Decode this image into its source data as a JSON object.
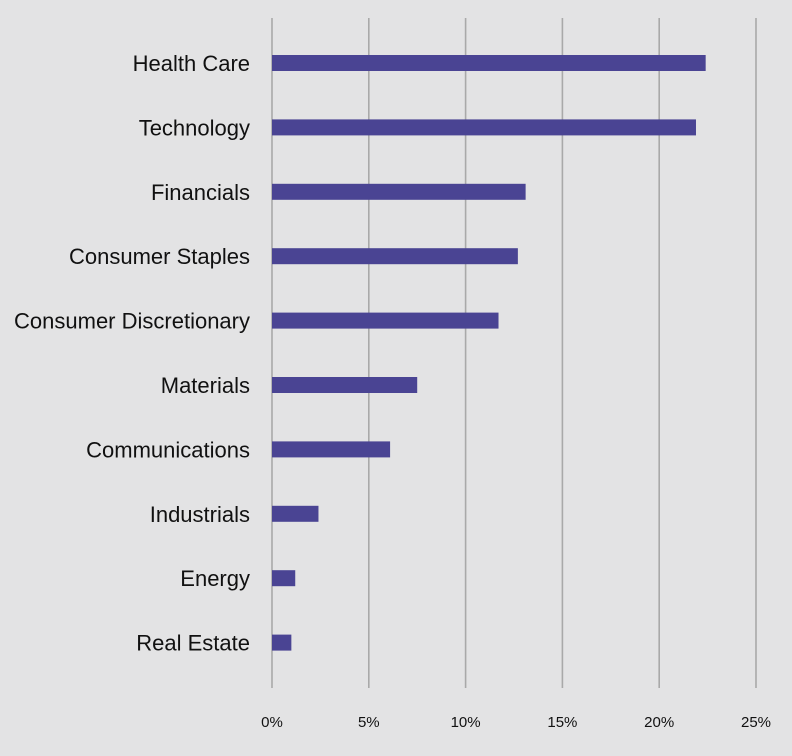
{
  "chart_data": {
    "type": "bar",
    "orientation": "horizontal",
    "categories": [
      "Health Care",
      "Technology",
      "Financials",
      "Consumer Staples",
      "Consumer Discretionary",
      "Materials",
      "Communications",
      "Industrials",
      "Energy",
      "Real Estate"
    ],
    "values": [
      22.4,
      21.9,
      13.1,
      12.7,
      11.7,
      7.5,
      6.1,
      2.4,
      1.2,
      1.0
    ],
    "x_ticks": [
      0,
      5,
      10,
      15,
      20,
      25
    ],
    "x_tick_labels": [
      "0%",
      "5%",
      "10%",
      "15%",
      "20%",
      "25%"
    ],
    "xlim": [
      0,
      25
    ],
    "title": "",
    "xlabel": "",
    "ylabel": "",
    "grid": "vertical",
    "legend": "none",
    "bar_color": "#4a4493",
    "background_color": "#e3e3e4"
  }
}
